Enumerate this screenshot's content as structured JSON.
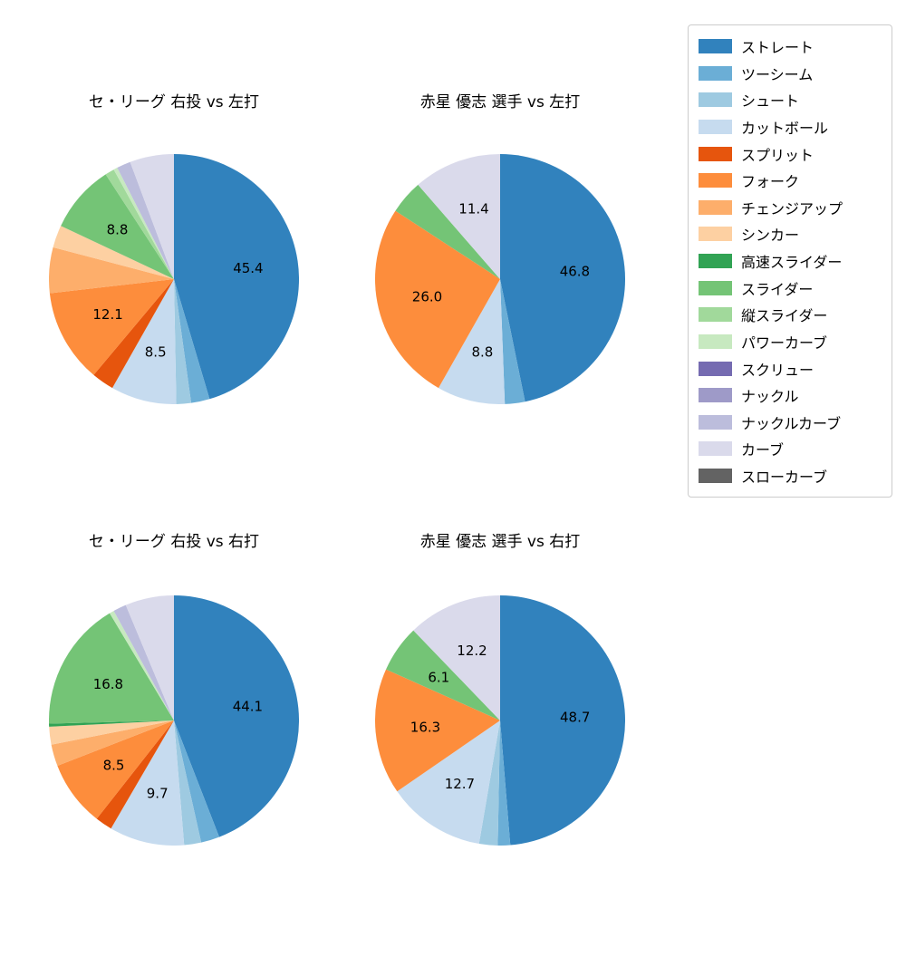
{
  "colors": {
    "background": "#ffffff",
    "text": "#000000",
    "legend_border": "#cccccc"
  },
  "legend": {
    "position": "top-right",
    "items": [
      {
        "label": "ストレート",
        "color": "#3182bd"
      },
      {
        "label": "ツーシーム",
        "color": "#6baed6"
      },
      {
        "label": "シュート",
        "color": "#9ecae1"
      },
      {
        "label": "カットボール",
        "color": "#c6dbef"
      },
      {
        "label": "スプリット",
        "color": "#e6550d"
      },
      {
        "label": "フォーク",
        "color": "#fd8d3c"
      },
      {
        "label": "チェンジアップ",
        "color": "#fdae6b"
      },
      {
        "label": "シンカー",
        "color": "#fdd0a2"
      },
      {
        "label": "高速スライダー",
        "color": "#31a354"
      },
      {
        "label": "スライダー",
        "color": "#74c476"
      },
      {
        "label": "縦スライダー",
        "color": "#a1d99b"
      },
      {
        "label": "パワーカーブ",
        "color": "#c7e9c0"
      },
      {
        "label": "スクリュー",
        "color": "#756bb1"
      },
      {
        "label": "ナックル",
        "color": "#9e9ac8"
      },
      {
        "label": "ナックルカーブ",
        "color": "#bcbddc"
      },
      {
        "label": "カーブ",
        "color": "#dadaeb"
      },
      {
        "label": "スローカーブ",
        "color": "#636363"
      }
    ]
  },
  "chart_data": [
    {
      "type": "pie",
      "title": "セ・リーグ 右投 vs 左打",
      "start_angle": "top",
      "direction": "clockwise",
      "segments": [
        {
          "name": "ストレート",
          "value": 45.4,
          "label": "45.4"
        },
        {
          "name": "ツーシーム",
          "value": 2.4,
          "label": ""
        },
        {
          "name": "シュート",
          "value": 1.9,
          "label": ""
        },
        {
          "name": "カットボール",
          "value": 8.5,
          "label": "8.5"
        },
        {
          "name": "スプリット",
          "value": 2.9,
          "label": ""
        },
        {
          "name": "フォーク",
          "value": 12.1,
          "label": "12.1"
        },
        {
          "name": "チェンジアップ",
          "value": 5.9,
          "label": ""
        },
        {
          "name": "シンカー",
          "value": 2.9,
          "label": ""
        },
        {
          "name": "スライダー",
          "value": 8.8,
          "label": "8.8"
        },
        {
          "name": "縦スライダー",
          "value": 1.2,
          "label": ""
        },
        {
          "name": "パワーカーブ",
          "value": 0.5,
          "label": ""
        },
        {
          "name": "ナックルカーブ",
          "value": 1.8,
          "label": ""
        },
        {
          "name": "カーブ",
          "value": 5.7,
          "label": ""
        }
      ]
    },
    {
      "type": "pie",
      "title": "赤星 優志 選手 vs 左打",
      "start_angle": "top",
      "direction": "clockwise",
      "segments": [
        {
          "name": "ストレート",
          "value": 46.8,
          "label": "46.8"
        },
        {
          "name": "ツーシーム",
          "value": 2.6,
          "label": ""
        },
        {
          "name": "カットボール",
          "value": 8.8,
          "label": "8.8"
        },
        {
          "name": "フォーク",
          "value": 26.0,
          "label": "26.0"
        },
        {
          "name": "スライダー",
          "value": 4.4,
          "label": ""
        },
        {
          "name": "カーブ",
          "value": 11.4,
          "label": "11.4"
        }
      ]
    },
    {
      "type": "pie",
      "title": "セ・リーグ 右投 vs 右打",
      "start_angle": "top",
      "direction": "clockwise",
      "segments": [
        {
          "name": "ストレート",
          "value": 44.1,
          "label": "44.1"
        },
        {
          "name": "ツーシーム",
          "value": 2.4,
          "label": ""
        },
        {
          "name": "シュート",
          "value": 2.2,
          "label": ""
        },
        {
          "name": "カットボール",
          "value": 9.7,
          "label": "9.7"
        },
        {
          "name": "スプリット",
          "value": 2.2,
          "label": ""
        },
        {
          "name": "フォーク",
          "value": 8.5,
          "label": "8.5"
        },
        {
          "name": "チェンジアップ",
          "value": 2.8,
          "label": ""
        },
        {
          "name": "シンカー",
          "value": 2.3,
          "label": ""
        },
        {
          "name": "高速スライダー",
          "value": 0.4,
          "label": ""
        },
        {
          "name": "スライダー",
          "value": 16.8,
          "label": "16.8"
        },
        {
          "name": "パワーカーブ",
          "value": 0.6,
          "label": ""
        },
        {
          "name": "ナックルカーブ",
          "value": 1.7,
          "label": ""
        },
        {
          "name": "カーブ",
          "value": 6.3,
          "label": ""
        }
      ]
    },
    {
      "type": "pie",
      "title": "赤星 優志 選手 vs 右打",
      "start_angle": "top",
      "direction": "clockwise",
      "segments": [
        {
          "name": "ストレート",
          "value": 48.7,
          "label": "48.7"
        },
        {
          "name": "ツーシーム",
          "value": 1.6,
          "label": ""
        },
        {
          "name": "シュート",
          "value": 2.4,
          "label": ""
        },
        {
          "name": "カットボール",
          "value": 12.7,
          "label": "12.7"
        },
        {
          "name": "フォーク",
          "value": 16.3,
          "label": "16.3"
        },
        {
          "name": "スライダー",
          "value": 6.1,
          "label": "6.1"
        },
        {
          "name": "カーブ",
          "value": 12.2,
          "label": "12.2"
        }
      ]
    }
  ]
}
